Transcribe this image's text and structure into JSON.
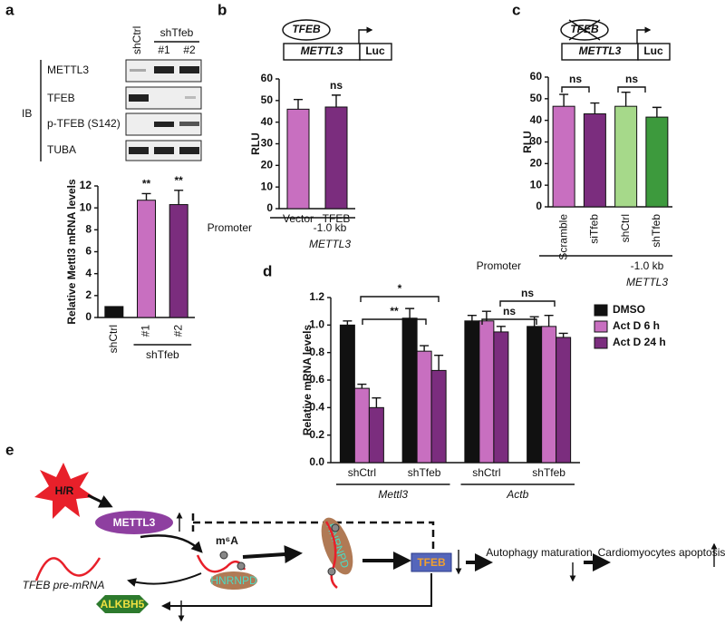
{
  "chart_data": [
    {
      "type": "bar",
      "panel": "a",
      "y_label": "Relative Mettl3 mRNA levels",
      "categories": [
        "shCtrl",
        "#1",
        "#2"
      ],
      "values": [
        1.0,
        10.7,
        10.3
      ],
      "errors": [
        0,
        0.6,
        1.3
      ],
      "colors": [
        "#111111",
        "#c86fc0",
        "#7b2d7e"
      ],
      "significance": [
        null,
        "**",
        "**"
      ],
      "group_label": "shTfeb",
      "ylim": [
        0,
        12
      ],
      "yticks": [
        0,
        2,
        4,
        6,
        8,
        10,
        12
      ]
    },
    {
      "type": "bar",
      "panel": "b",
      "y_label": "RLU",
      "construct": [
        "TFEB",
        "METTL3",
        "Luc"
      ],
      "categories": [
        "Vector",
        "TFEB"
      ],
      "values": [
        46,
        47
      ],
      "errors": [
        4.5,
        5.5
      ],
      "colors": [
        "#c86fc0",
        "#7b2d7e"
      ],
      "significance": [
        null,
        "ns"
      ],
      "promoter_label": "Promoter",
      "promoter": "-1.0 kb",
      "gene": "METTL3",
      "ylim": [
        0,
        60
      ],
      "yticks": [
        0,
        10,
        20,
        30,
        40,
        50,
        60
      ]
    },
    {
      "type": "bar",
      "panel": "c",
      "y_label": "RLU",
      "construct": [
        "TFEB",
        "METTL3",
        "Luc"
      ],
      "categories": [
        "Scramble",
        "siTfeb",
        "shCtrl",
        "shTfeb"
      ],
      "values": [
        46.5,
        43,
        46.5,
        41.5
      ],
      "errors": [
        5.5,
        5,
        6.5,
        4.5
      ],
      "colors": [
        "#c86fc0",
        "#7b2d7e",
        "#a6d98a",
        "#3d9a3d"
      ],
      "brackets": [
        "ns",
        "ns"
      ],
      "promoter_label": "Promoter",
      "promoter": "-1.0 kb",
      "gene": "METTL3",
      "ylim": [
        0,
        60
      ],
      "yticks": [
        0,
        10,
        20,
        30,
        40,
        50,
        60
      ]
    },
    {
      "type": "grouped_bar",
      "panel": "d",
      "y_label": "Relative mRNA levels",
      "categories": [
        "shCtrl",
        "shTfeb",
        "shCtrl",
        "shTfeb"
      ],
      "groups": [
        "Mettl3",
        "Actb"
      ],
      "series": [
        {
          "name": "DMSO",
          "color": "#111111",
          "values": [
            1.0,
            1.05,
            1.03,
            0.99
          ],
          "errors": [
            0.03,
            0.07,
            0.04,
            0.07
          ]
        },
        {
          "name": "Act D 6 h",
          "color": "#c86fc0",
          "values": [
            0.54,
            0.81,
            1.03,
            0.99
          ],
          "errors": [
            0.03,
            0.04,
            0.07,
            0.08
          ]
        },
        {
          "name": "Act D 24 h",
          "color": "#7b2d7e",
          "values": [
            0.4,
            0.67,
            0.95,
            0.91
          ],
          "errors": [
            0.07,
            0.11,
            0.04,
            0.03
          ]
        }
      ],
      "brackets": [
        "**",
        "*",
        "ns",
        "ns"
      ],
      "ylim": [
        0,
        1.2
      ],
      "yticks": [
        {
          "value": 0,
          "label": "0.0"
        },
        0.2,
        0.4,
        0.6,
        0.8,
        {
          "value": 1,
          "label": "1.0"
        },
        1.2
      ]
    }
  ],
  "blot": {
    "lanes": [
      "shCtrl",
      "#1",
      "#2"
    ],
    "lane_group": "shTfeb",
    "method": "IB",
    "rows": [
      "METTL3",
      "TFEB",
      "p-TFEB (S142)",
      "TUBA"
    ]
  },
  "diagram": {
    "panel": "e",
    "stress": "H/R",
    "writer": "METTL3",
    "mark": "m⁶A",
    "reader": [
      "HNRNPD",
      "HNRNPD"
    ],
    "target": "TFEB",
    "transcript": "TFEB pre-mRNA",
    "eraser": "ALKBH5",
    "outcome_1": "Autophagy maturation",
    "outcome_2": "Cardiomyocytes apoptosis"
  }
}
